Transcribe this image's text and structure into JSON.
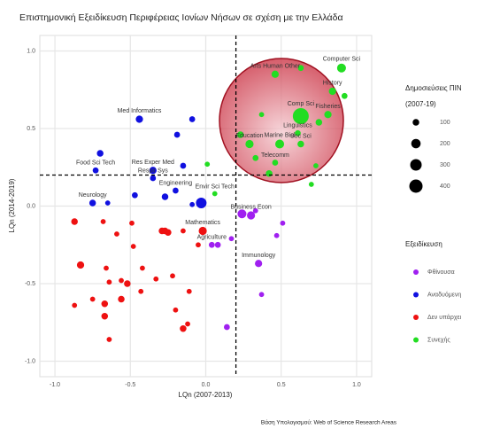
{
  "chart_data": {
    "type": "scatter",
    "title": "Επιστημονική Εξειδίκευση Περιφέρειας Ιονίων Νήσων σε σχέση με την Ελλάδα",
    "x_label": "LQn (2007-2013)",
    "y_label": "LQn (2014-2019)",
    "caption": "Βάση Υπολογισμού: Web of Science Research Areas",
    "xlim": [
      -1.1,
      1.1
    ],
    "ylim": [
      -1.1,
      1.1
    ],
    "xticks": [
      {
        "value": -1,
        "label": "-1.0"
      },
      {
        "value": -0.5,
        "label": "-0.5"
      },
      {
        "value": 0,
        "label": "0.0"
      },
      {
        "value": 0.5,
        "label": "0.5"
      },
      {
        "value": 1,
        "label": "1.0"
      }
    ],
    "yticks": [
      {
        "value": -1,
        "label": "-1.0"
      },
      {
        "value": -0.5,
        "label": "-0.5"
      },
      {
        "value": 0,
        "label": "0.0"
      },
      {
        "value": 0.5,
        "label": "0.5"
      },
      {
        "value": 1,
        "label": "1.0"
      }
    ],
    "grid": true,
    "vline": 0.2,
    "hline": 0.2,
    "size_legend": {
      "title": "Δημοσιεύσεις ΠΙΝ",
      "subtitle": "(2007-19)",
      "values": [
        100,
        200,
        300,
        400
      ]
    },
    "legend_title": "Εξειδίκευση",
    "series": [
      {
        "name": "Φθίνουσα",
        "color": "#a020f0",
        "x": [
          0.24,
          0.3,
          0.33,
          0.51,
          0.47,
          0.17,
          0.04,
          0.08,
          0.35,
          0.37,
          0.14
        ],
        "y": [
          -0.05,
          -0.06,
          -0.03,
          -0.11,
          -0.19,
          -0.21,
          -0.25,
          -0.25,
          -0.37,
          -0.57,
          -0.78
        ],
        "sizes": [
          180,
          150,
          60,
          60,
          60,
          60,
          80,
          80,
          120,
          60,
          80
        ],
        "labels": [
          null,
          "Business Econ",
          null,
          null,
          null,
          null,
          "Agriculture",
          null,
          "Immunology",
          null,
          null
        ]
      },
      {
        "name": "Αναδυόμενη",
        "color": "#1010e0",
        "x": [
          -0.44,
          -0.09,
          -0.19,
          -0.7,
          -0.73,
          -0.35,
          -0.15,
          -0.35,
          -0.47,
          -0.2,
          -0.27,
          -0.75,
          -0.65,
          -0.09,
          -0.03
        ],
        "y": [
          0.56,
          0.56,
          0.46,
          0.34,
          0.23,
          0.23,
          0.26,
          0.18,
          0.07,
          0.1,
          0.06,
          0.02,
          0.02,
          0.01,
          0.02
        ],
        "sizes": [
          120,
          80,
          80,
          100,
          80,
          120,
          80,
          80,
          80,
          80,
          100,
          100,
          60,
          60,
          256
        ],
        "labels": [
          "Med Informatics",
          null,
          null,
          null,
          "Food Sci Tech",
          "Res Exper Med",
          null,
          "Respir Sys",
          null,
          "Engineering",
          null,
          "Neurology",
          null,
          null,
          null
        ]
      },
      {
        "name": "Δεν υπάρχει",
        "color": "#ee1111",
        "x": [
          -0.87,
          -0.68,
          -0.49,
          -0.59,
          -0.02,
          -0.29,
          -0.27,
          -0.25,
          -0.15,
          -0.48,
          -0.05,
          -0.83,
          -0.66,
          -0.42,
          -0.56,
          -0.52,
          -0.33,
          -0.22,
          -0.64,
          -0.43,
          -0.11,
          -0.75,
          -0.56,
          -0.67,
          -0.87,
          -0.67,
          -0.2,
          -0.12,
          -0.15,
          -0.64
        ],
        "y": [
          -0.1,
          -0.1,
          -0.11,
          -0.18,
          -0.16,
          -0.16,
          -0.16,
          -0.17,
          -0.16,
          -0.26,
          -0.25,
          -0.38,
          -0.4,
          -0.4,
          -0.48,
          -0.5,
          -0.47,
          -0.45,
          -0.49,
          -0.55,
          -0.55,
          -0.6,
          -0.6,
          -0.63,
          -0.64,
          -0.71,
          -0.67,
          -0.76,
          -0.79,
          -0.86
        ],
        "sizes": [
          100,
          60,
          60,
          60,
          150,
          100,
          100,
          100,
          60,
          60,
          60,
          120,
          60,
          60,
          60,
          100,
          60,
          60,
          60,
          60,
          60,
          60,
          100,
          100,
          60,
          100,
          60,
          60,
          100,
          60
        ],
        "labels": [
          null,
          null,
          null,
          null,
          "Mathematics",
          null,
          null,
          null,
          null,
          null,
          null,
          null,
          null,
          null,
          null,
          null,
          null,
          null,
          null,
          null,
          null,
          null,
          null,
          null,
          null,
          null,
          null,
          null,
          null,
          null
        ]
      },
      {
        "name": "Συνεχής",
        "color": "#22dd22",
        "x": [
          0.63,
          0.9,
          0.46,
          0.63,
          0.84,
          0.92,
          0.81,
          0.75,
          0.37,
          0.61,
          0.23,
          0.29,
          0.49,
          0.63,
          0.33,
          0.46,
          0.73,
          0.42,
          0.7,
          0.01,
          0.06
        ],
        "y": [
          0.58,
          0.89,
          0.85,
          0.89,
          0.74,
          0.71,
          0.59,
          0.54,
          0.59,
          0.47,
          0.46,
          0.4,
          0.4,
          0.4,
          0.31,
          0.28,
          0.26,
          0.21,
          0.14,
          0.27,
          0.08
        ],
        "sizes": [
          576,
          180,
          120,
          80,
          120,
          80,
          120,
          100,
          60,
          80,
          100,
          150,
          180,
          100,
          80,
          80,
          60,
          100,
          60,
          60,
          60
        ],
        "labels": [
          "Comp Sci",
          "Computer Sci",
          "Arts Human Other",
          null,
          "History",
          null,
          "Fisheries",
          null,
          null,
          "Linguistics",
          null,
          "Education",
          "Marine Biol",
          "Soc Sci",
          null,
          "Telecomm",
          null,
          null,
          null,
          null,
          "Envir Sci Tech"
        ]
      }
    ]
  }
}
